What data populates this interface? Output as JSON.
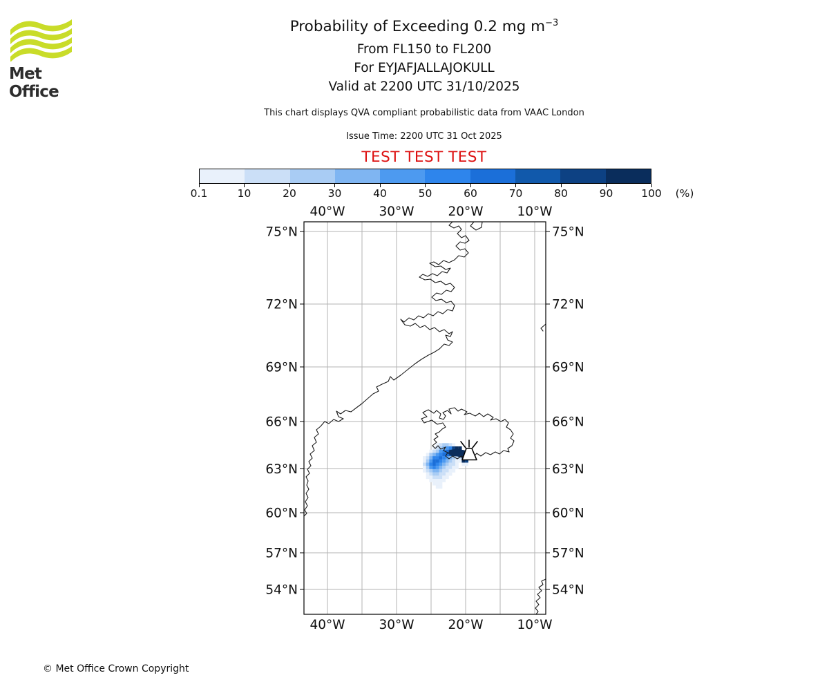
{
  "header": {
    "logo_text": "Met Office",
    "title_main": "Probability of Exceeding 0.2 mg m",
    "title_sup": "−3",
    "subtitle_lines": [
      "From FL150 to FL200",
      "For EYJAFJALLAJOKULL",
      "Valid at 2200 UTC 31/10/2025"
    ],
    "disclaimer": "This chart displays QVA compliant probabilistic data from VAAC London",
    "issue_time": "Issue Time: 2200 UTC 31 Oct 2025",
    "test_banner": "TEST TEST TEST"
  },
  "colorbar": {
    "tick_labels": [
      "0.1",
      "10",
      "20",
      "30",
      "40",
      "50",
      "60",
      "70",
      "80",
      "90",
      "100"
    ],
    "unit_label": "(%)",
    "segment_colors": [
      "#e9f1fb",
      "#cbdff7",
      "#a9ccf4",
      "#7fb5f2",
      "#4d9af0",
      "#2e85ec",
      "#1b6fd9",
      "#1159ab",
      "#0d4183",
      "#0a2d5c"
    ]
  },
  "map": {
    "lon_tick_labels": [
      "40°W",
      "30°W",
      "20°W",
      "10°W"
    ],
    "lat_tick_labels": [
      "75°N",
      "72°N",
      "69°N",
      "66°N",
      "63°N",
      "60°N",
      "57°N",
      "54°N"
    ]
  },
  "footer": {
    "copyright": "© Met Office Crown Copyright"
  },
  "accent_colors": {
    "test_red": "#dd1111",
    "logo_green": "#c9dc29",
    "gridline_gray": "#b3b3b3"
  },
  "chart_data": {
    "type": "heatmap",
    "title": "Probability of Exceeding 0.2 mg m⁻³",
    "flight_levels": "From FL150 to FL200",
    "volcano": "EYJAFJALLAJOKULL",
    "valid_time": "Valid at 2200 UTC 31/10/2025",
    "issue_time": "2200 UTC 31 Oct 2025",
    "data_source": "VAAC London",
    "projection": "Mercator",
    "grid_on": true,
    "legend_position": "top",
    "lon_axis": {
      "tick_labels_deg_w": [
        40,
        30,
        20,
        10
      ],
      "gridline_spacing_deg": 5,
      "range_deg_w": [
        43.4,
        8.4
      ]
    },
    "lat_axis": {
      "tick_labels_deg_n": [
        75,
        72,
        69,
        66,
        63,
        60,
        57,
        54
      ],
      "gridline_spacing_deg": 3,
      "range_deg_n": [
        51.8,
        75.4
      ]
    },
    "probability_bin_edges_percent": [
      0.1,
      10,
      20,
      30,
      40,
      50,
      60,
      70,
      80,
      90,
      100
    ],
    "volcano_marker": {
      "approx_lat_n": 63.6,
      "approx_lon_w": 19.6
    },
    "plume_cells": {
      "origin_corner": {
        "approx_lon_w": 26.8,
        "approx_lat_n": 64.2
      },
      "cell_size_deg_lon": 0.47,
      "levels_are_bin_index": "0=none, 1=0.1-10% ... 10=90-100%",
      "levels_grid": [
        [
          0,
          0,
          0,
          0,
          1,
          2,
          3,
          3,
          2,
          1,
          0,
          0,
          0,
          0
        ],
        [
          0,
          0,
          0,
          1,
          2,
          3,
          4,
          5,
          6,
          9,
          10,
          10,
          0,
          0
        ],
        [
          0,
          0,
          1,
          2,
          3,
          5,
          6,
          7,
          9,
          10,
          10,
          10,
          0,
          0
        ],
        [
          0,
          1,
          3,
          4,
          5,
          6,
          7,
          7,
          8,
          10,
          10,
          9,
          2,
          0
        ],
        [
          1,
          2,
          4,
          6,
          6,
          7,
          6,
          5,
          4,
          3,
          2,
          2,
          10,
          10
        ],
        [
          1,
          3,
          5,
          7,
          7,
          6,
          5,
          4,
          3,
          2,
          1,
          1,
          10,
          9
        ],
        [
          2,
          4,
          6,
          7,
          6,
          5,
          4,
          3,
          2,
          2,
          1,
          0,
          1,
          1
        ],
        [
          1,
          3,
          5,
          6,
          5,
          4,
          3,
          2,
          2,
          1,
          1,
          0,
          0,
          0
        ],
        [
          1,
          2,
          3,
          4,
          4,
          3,
          2,
          2,
          1,
          1,
          0,
          0,
          0,
          0
        ],
        [
          0,
          1,
          2,
          3,
          3,
          2,
          2,
          1,
          1,
          0,
          0,
          0,
          0,
          0
        ],
        [
          0,
          1,
          1,
          2,
          2,
          2,
          1,
          1,
          0,
          0,
          0,
          0,
          0,
          0
        ],
        [
          0,
          0,
          1,
          1,
          1,
          1,
          1,
          0,
          0,
          0,
          0,
          0,
          0,
          0
        ],
        [
          0,
          0,
          0,
          1,
          1,
          1,
          0,
          0,
          0,
          0,
          0,
          0,
          0,
          0
        ],
        [
          0,
          0,
          0,
          0,
          1,
          1,
          0,
          0,
          0,
          0,
          0,
          0,
          0,
          0
        ]
      ]
    }
  }
}
